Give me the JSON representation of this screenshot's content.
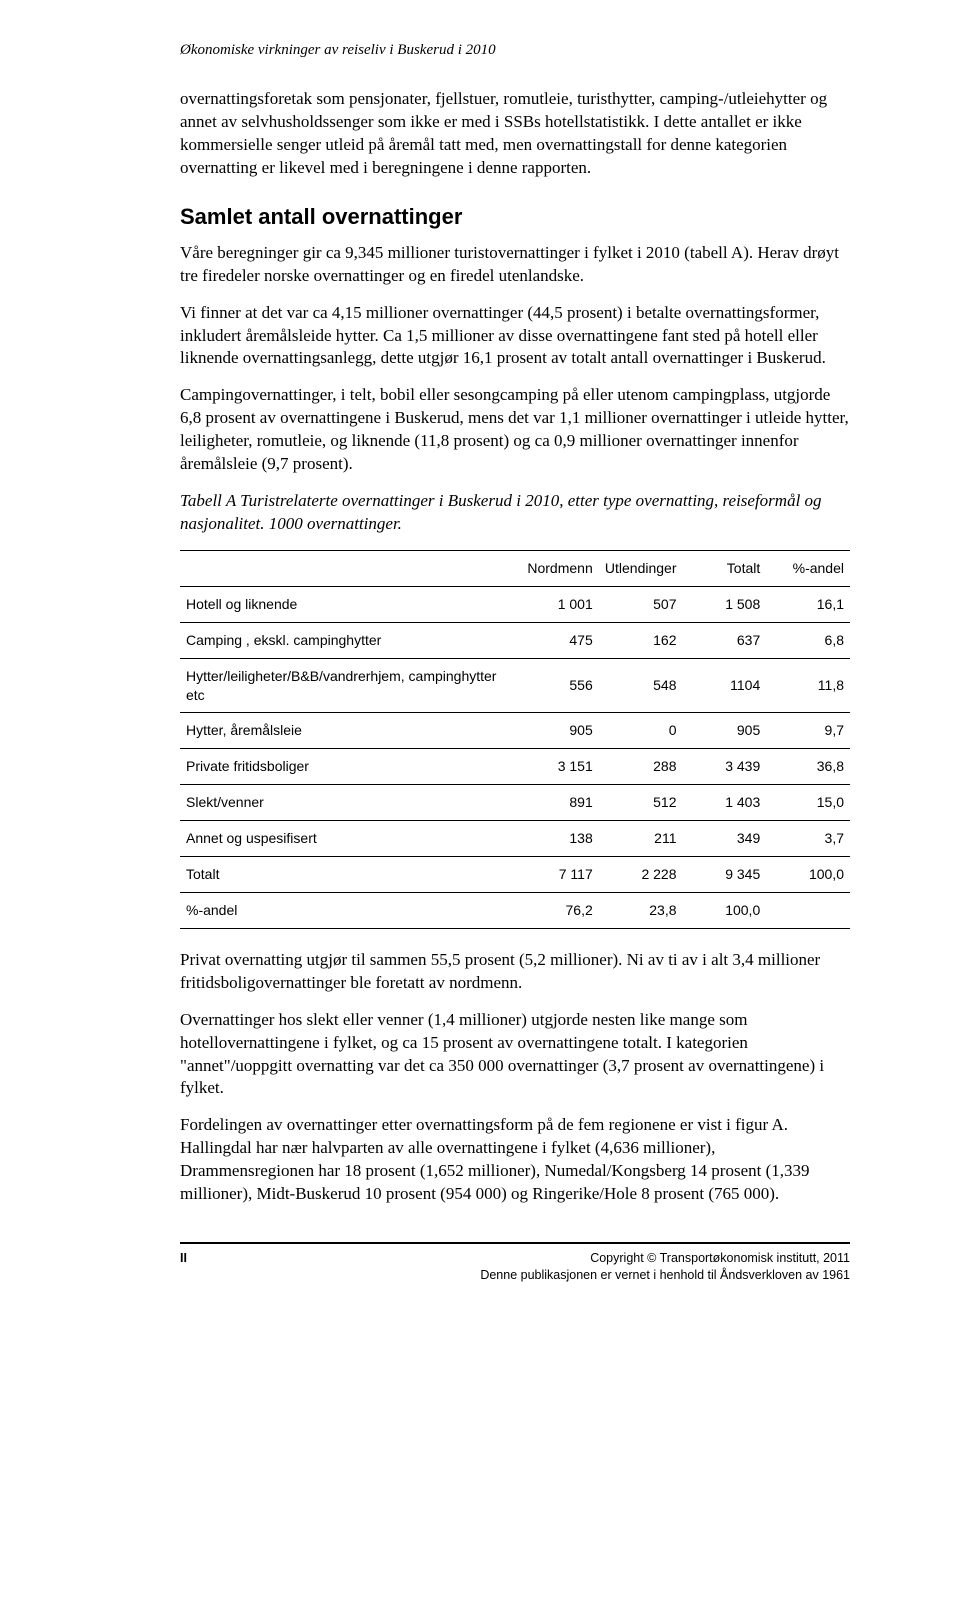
{
  "header": {
    "title": "Økonomiske virkninger av reiseliv i Buskerud i 2010"
  },
  "paragraphs": {
    "p1": "overnattingsforetak som pensjonater, fjellstuer, romutleie, turisthytter, camping-/utleiehytter og annet av selvhusholdssenger som ikke er med i SSBs hotellstatistikk. I dette antallet er ikke kommersielle senger utleid på åremål tatt med, men overnattingstall for denne kategorien overnatting er likevel med i beregningene i denne rapporten.",
    "p2": "Våre beregninger gir ca 9,345 millioner turistovernattinger i fylket i 2010 (tabell A). Herav drøyt tre firedeler norske overnattinger og en firedel utenlandske.",
    "p3": "Vi finner at det var ca 4,15 millioner overnattinger (44,5 prosent) i betalte overnattingsformer, inkludert åremålsleide hytter. Ca 1,5 millioner av disse overnattingene fant sted på hotell eller liknende overnattingsanlegg, dette utgjør 16,1 prosent av totalt antall overnattinger i Buskerud.",
    "p4": "Campingovernattinger, i telt, bobil eller sesongcamping på eller utenom campingplass, utgjorde 6,8 prosent av overnattingene i Buskerud, mens det var 1,1 millioner overnattinger i utleide hytter, leiligheter, romutleie, og liknende (11,8 prosent) og ca 0,9 millioner overnattinger innenfor åremålsleie (9,7 prosent).",
    "p5": "Privat overnatting utgjør til sammen 55,5 prosent (5,2 millioner). Ni av ti av i alt 3,4 millioner fritidsboligovernattinger ble foretatt av nordmenn.",
    "p6": "Overnattinger hos slekt eller venner (1,4 millioner) utgjorde nesten like mange som hotellovernattingene i fylket, og ca 15 prosent av overnattingene totalt. I kategorien \"annet\"/uoppgitt overnatting var det ca 350 000 overnattinger (3,7 prosent av overnattingene) i fylket.",
    "p7": "Fordelingen av overnattinger etter overnattingsform på de fem regionene er vist i figur A. Hallingdal har nær halvparten av alle overnattingene i fylket (4,636 millioner), Drammensregionen har 18 prosent (1,652 millioner), Numedal/Kongsberg 14 prosent (1,339 millioner), Midt-Buskerud 10 prosent (954 000) og Ringerike/Hole 8 prosent (765 000)."
  },
  "section": {
    "heading": "Samlet antall overnattinger"
  },
  "table": {
    "caption": "Tabell A Turistrelaterte overnattinger i Buskerud i 2010, etter type overnatting, reiseformål og nasjonalitet. 1000 overnattinger.",
    "columns": [
      "",
      "Nordmenn",
      "Utlendinger",
      "Totalt",
      "%-andel"
    ],
    "rows": [
      {
        "label": "Hotell og liknende",
        "v": [
          "1 001",
          "507",
          "1 508",
          "16,1"
        ]
      },
      {
        "label": "Camping , ekskl. campinghytter",
        "v": [
          "475",
          "162",
          "637",
          "6,8"
        ]
      },
      {
        "label": "Hytter/leiligheter/B&B/vandrerhjem, campinghytter etc",
        "v": [
          "556",
          "548",
          "1104",
          "11,8"
        ]
      },
      {
        "label": "Hytter, åremålsleie",
        "v": [
          "905",
          "0",
          "905",
          "9,7"
        ]
      },
      {
        "label": "Private fritidsboliger",
        "v": [
          "3 151",
          "288",
          "3 439",
          "36,8"
        ]
      },
      {
        "label": "Slekt/venner",
        "v": [
          "891",
          "512",
          "1 403",
          "15,0"
        ]
      },
      {
        "label": "Annet og uspesifisert",
        "v": [
          "138",
          "211",
          "349",
          "3,7"
        ]
      },
      {
        "label": "Totalt",
        "v": [
          "7 117",
          "2 228",
          "9 345",
          "100,0"
        ]
      },
      {
        "label": "%-andel",
        "v": [
          "76,2",
          "23,8",
          "100,0",
          ""
        ]
      }
    ],
    "font_family": "Arial",
    "font_size_pt": 10,
    "border_color": "#000000",
    "cell_align_numeric": "right",
    "cell_align_label": "left"
  },
  "footer": {
    "page": "II",
    "copyright": "Copyright © Transportøkonomisk institutt, 2011",
    "rights": "Denne publikasjonen er vernet i henhold til Åndsverkloven av 1961"
  },
  "styles": {
    "body_font": "Times New Roman",
    "body_fontsize_pt": 12,
    "heading_font": "Arial",
    "heading_fontsize_pt": 16,
    "heading_weight": "bold",
    "background_color": "#ffffff",
    "text_color": "#000000"
  }
}
